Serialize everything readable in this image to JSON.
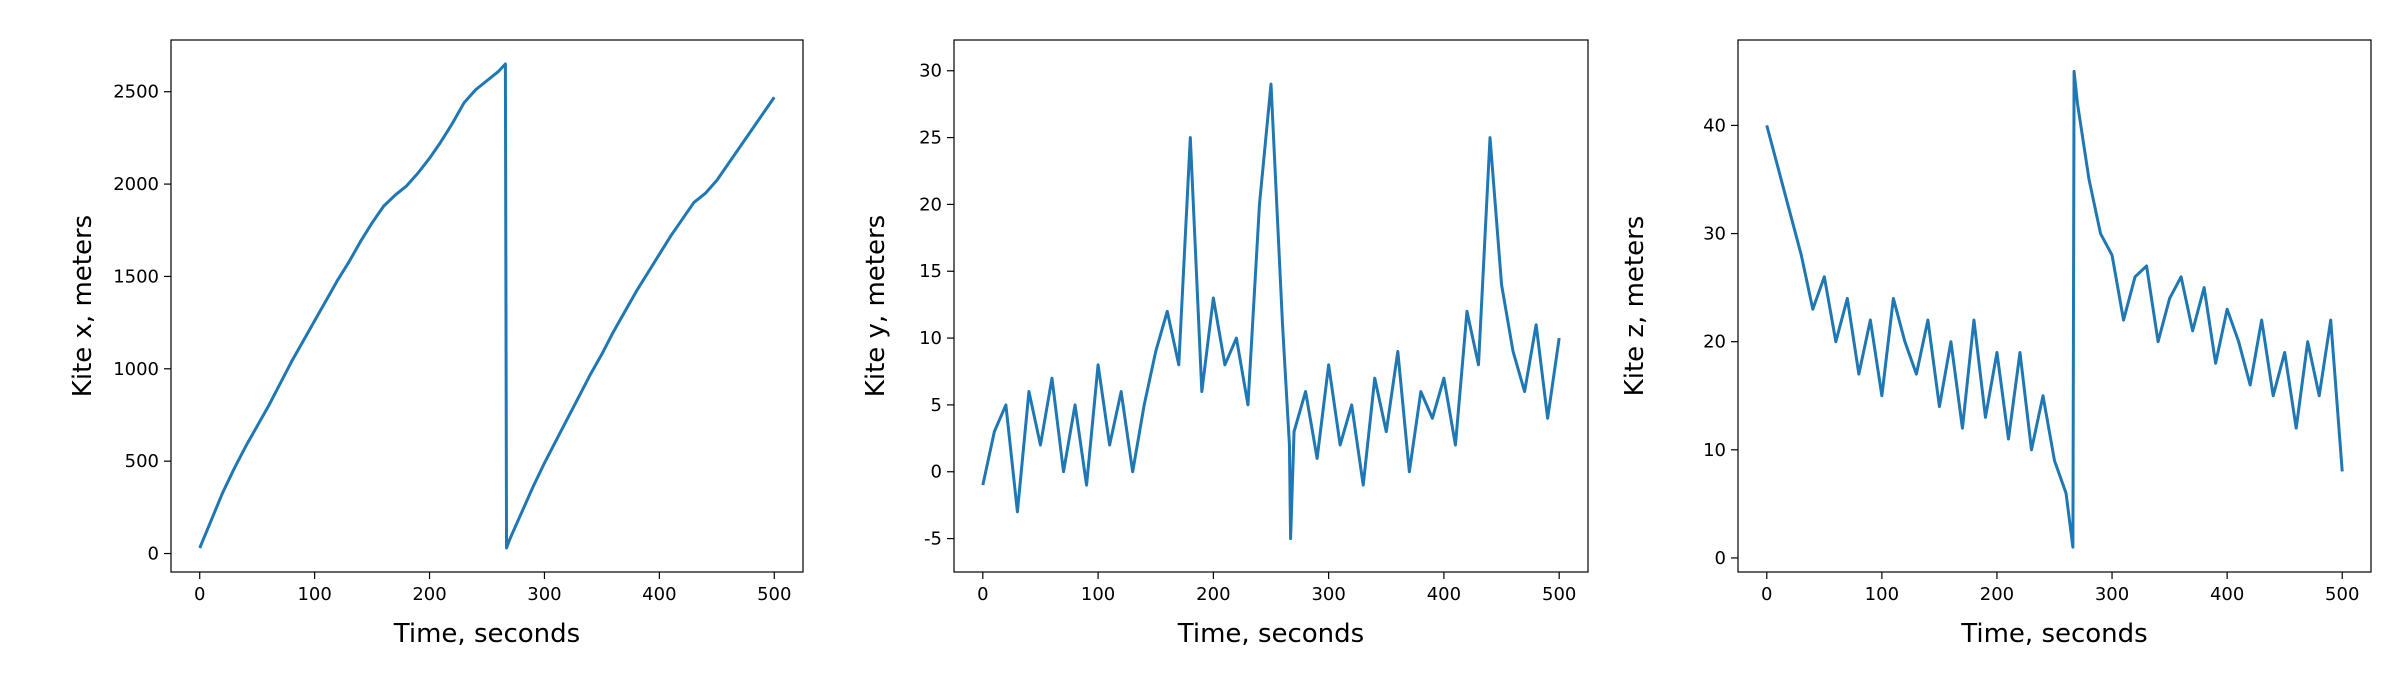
{
  "chart_data": [
    {
      "type": "line",
      "xlabel": "Time, seconds",
      "ylabel": "Kite x, meters",
      "color": "#1f77b4",
      "x": [
        0,
        10,
        20,
        30,
        40,
        50,
        60,
        70,
        80,
        90,
        100,
        110,
        120,
        130,
        140,
        150,
        160,
        170,
        180,
        190,
        200,
        210,
        220,
        230,
        240,
        250,
        260,
        266,
        267,
        270,
        280,
        290,
        300,
        310,
        320,
        330,
        340,
        350,
        360,
        370,
        380,
        390,
        400,
        410,
        420,
        430,
        440,
        450,
        460,
        470,
        480,
        490,
        500
      ],
      "values": [
        30,
        180,
        330,
        460,
        580,
        690,
        800,
        920,
        1040,
        1150,
        1260,
        1370,
        1480,
        1580,
        1690,
        1790,
        1880,
        1940,
        1990,
        2060,
        2140,
        2230,
        2330,
        2440,
        2510,
        2560,
        2610,
        2650,
        30,
        80,
        220,
        360,
        490,
        610,
        730,
        850,
        970,
        1080,
        1200,
        1310,
        1420,
        1520,
        1620,
        1720,
        1810,
        1900,
        1950,
        2020,
        2110,
        2200,
        2290,
        2380,
        2470
      ],
      "xlim": [
        -25,
        525
      ],
      "xticks": [
        0,
        100,
        200,
        300,
        400,
        500
      ],
      "ylim": [
        -100,
        2780
      ],
      "yticks": [
        0,
        500,
        1000,
        1500,
        2000,
        2500
      ]
    },
    {
      "type": "line",
      "xlabel": "Time, seconds",
      "ylabel": "Kite y, meters",
      "color": "#1f77b4",
      "x": [
        0,
        10,
        20,
        30,
        40,
        50,
        60,
        70,
        80,
        90,
        100,
        110,
        120,
        130,
        140,
        150,
        160,
        170,
        180,
        190,
        200,
        210,
        220,
        230,
        240,
        250,
        260,
        266,
        267,
        270,
        280,
        290,
        300,
        310,
        320,
        330,
        340,
        350,
        360,
        370,
        380,
        390,
        400,
        410,
        420,
        430,
        440,
        450,
        460,
        470,
        480,
        490,
        500
      ],
      "values": [
        -1,
        3,
        5,
        -3,
        6,
        2,
        7,
        0,
        5,
        -1,
        8,
        2,
        6,
        0,
        5,
        9,
        12,
        8,
        25,
        6,
        13,
        8,
        10,
        5,
        20,
        29,
        11,
        2,
        -5,
        3,
        6,
        1,
        8,
        2,
        5,
        -1,
        7,
        3,
        9,
        0,
        6,
        4,
        7,
        2,
        12,
        8,
        25,
        14,
        9,
        6,
        11,
        4,
        10
      ],
      "xlim": [
        -25,
        525
      ],
      "xticks": [
        0,
        100,
        200,
        300,
        400,
        500
      ],
      "ylim": [
        -7.5,
        32.3
      ],
      "yticks": [
        -5,
        0,
        5,
        10,
        15,
        20,
        25,
        30
      ]
    },
    {
      "type": "line",
      "xlabel": "Time, seconds",
      "ylabel": "Kite z, meters",
      "color": "#1f77b4",
      "x": [
        0,
        10,
        20,
        30,
        40,
        50,
        60,
        70,
        80,
        90,
        100,
        110,
        120,
        130,
        140,
        150,
        160,
        170,
        180,
        190,
        200,
        210,
        220,
        230,
        240,
        250,
        260,
        266,
        267,
        270,
        280,
        290,
        300,
        310,
        320,
        330,
        340,
        350,
        360,
        370,
        380,
        390,
        400,
        410,
        420,
        430,
        440,
        450,
        460,
        470,
        480,
        490,
        500
      ],
      "values": [
        40,
        36,
        32,
        28,
        23,
        26,
        20,
        24,
        17,
        22,
        15,
        24,
        20,
        17,
        22,
        14,
        20,
        12,
        22,
        13,
        19,
        11,
        19,
        10,
        15,
        9,
        6,
        1,
        45,
        42,
        35,
        30,
        28,
        22,
        26,
        27,
        20,
        24,
        26,
        21,
        25,
        18,
        23,
        20,
        16,
        22,
        15,
        19,
        12,
        20,
        15,
        22,
        8
      ],
      "xlim": [
        -25,
        525
      ],
      "xticks": [
        0,
        100,
        200,
        300,
        400,
        500
      ],
      "ylim": [
        -1.3,
        47.9
      ],
      "yticks": [
        0,
        10,
        20,
        30,
        40
      ]
    }
  ]
}
